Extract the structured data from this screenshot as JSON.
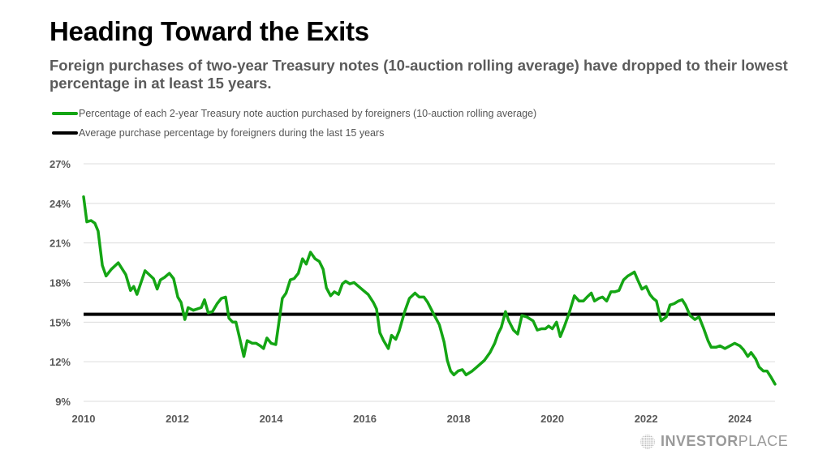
{
  "header": {
    "title": "Heading Toward the Exits",
    "subtitle": "Foreign purchases of two-year Treasury notes (10-auction rolling average) have dropped to their lowest percentage in at least 15 years."
  },
  "branding": {
    "logo_bold": "INVESTOR",
    "logo_light": "PLACE"
  },
  "chart_data": {
    "type": "line",
    "title": "Heading Toward the Exits",
    "xlabel": "",
    "ylabel": "",
    "xlim": [
      2010,
      2024.75
    ],
    "ylim": [
      9,
      27
    ],
    "grid": true,
    "legend_position": "top-left",
    "x_ticks": [
      "2010",
      "2012",
      "2014",
      "2016",
      "2018",
      "2020",
      "2022",
      "2024"
    ],
    "x_tick_values": [
      2010,
      2012,
      2014,
      2016,
      2018,
      2020,
      2022,
      2024
    ],
    "y_ticks": [
      "27%",
      "24%",
      "21%",
      "18%",
      "15%",
      "12%",
      "9%"
    ],
    "y_tick_values": [
      27,
      24,
      21,
      18,
      15,
      12,
      9
    ],
    "series": [
      {
        "name": "Percentage of each 2-year Treasury note auction purchased by foreigners (10-auction rolling average)",
        "color": "#14a514",
        "points": [
          [
            2010.0,
            24.5
          ],
          [
            2010.07,
            22.6
          ],
          [
            2010.16,
            22.7
          ],
          [
            2010.24,
            22.5
          ],
          [
            2010.31,
            21.9
          ],
          [
            2010.4,
            19.3
          ],
          [
            2010.48,
            18.5
          ],
          [
            2010.59,
            19.0
          ],
          [
            2010.74,
            19.5
          ],
          [
            2010.9,
            18.6
          ],
          [
            2011.0,
            17.4
          ],
          [
            2011.07,
            17.7
          ],
          [
            2011.14,
            17.1
          ],
          [
            2011.31,
            18.9
          ],
          [
            2011.49,
            18.3
          ],
          [
            2011.57,
            17.5
          ],
          [
            2011.64,
            18.2
          ],
          [
            2011.73,
            18.4
          ],
          [
            2011.83,
            18.7
          ],
          [
            2011.92,
            18.3
          ],
          [
            2012.01,
            16.9
          ],
          [
            2012.08,
            16.5
          ],
          [
            2012.16,
            15.2
          ],
          [
            2012.23,
            16.1
          ],
          [
            2012.34,
            15.9
          ],
          [
            2012.51,
            16.1
          ],
          [
            2012.58,
            16.7
          ],
          [
            2012.66,
            15.7
          ],
          [
            2012.75,
            15.8
          ],
          [
            2012.85,
            16.4
          ],
          [
            2012.94,
            16.8
          ],
          [
            2013.03,
            16.9
          ],
          [
            2013.1,
            15.3
          ],
          [
            2013.18,
            15.0
          ],
          [
            2013.25,
            15.0
          ],
          [
            2013.33,
            13.8
          ],
          [
            2013.42,
            12.4
          ],
          [
            2013.49,
            13.6
          ],
          [
            2013.6,
            13.4
          ],
          [
            2013.68,
            13.4
          ],
          [
            2013.77,
            13.2
          ],
          [
            2013.84,
            13.0
          ],
          [
            2013.91,
            13.8
          ],
          [
            2014.0,
            13.4
          ],
          [
            2014.1,
            13.3
          ],
          [
            2014.24,
            16.8
          ],
          [
            2014.32,
            17.2
          ],
          [
            2014.41,
            18.2
          ],
          [
            2014.49,
            18.3
          ],
          [
            2014.58,
            18.7
          ],
          [
            2014.67,
            19.8
          ],
          [
            2014.75,
            19.4
          ],
          [
            2014.84,
            20.3
          ],
          [
            2014.94,
            19.8
          ],
          [
            2015.03,
            19.6
          ],
          [
            2015.11,
            19.0
          ],
          [
            2015.18,
            17.6
          ],
          [
            2015.27,
            17.0
          ],
          [
            2015.35,
            17.3
          ],
          [
            2015.44,
            17.1
          ],
          [
            2015.52,
            17.9
          ],
          [
            2015.59,
            18.1
          ],
          [
            2015.68,
            17.9
          ],
          [
            2015.77,
            18.0
          ],
          [
            2015.87,
            17.7
          ],
          [
            2015.97,
            17.4
          ],
          [
            2016.07,
            17.1
          ],
          [
            2016.18,
            16.5
          ],
          [
            2016.25,
            16.0
          ],
          [
            2016.32,
            14.2
          ],
          [
            2016.4,
            13.6
          ],
          [
            2016.5,
            13.0
          ],
          [
            2016.57,
            14.0
          ],
          [
            2016.66,
            13.7
          ],
          [
            2016.73,
            14.3
          ],
          [
            2016.85,
            15.8
          ],
          [
            2016.95,
            16.8
          ],
          [
            2017.07,
            17.2
          ],
          [
            2017.16,
            16.9
          ],
          [
            2017.26,
            16.9
          ],
          [
            2017.34,
            16.5
          ],
          [
            2017.47,
            15.6
          ],
          [
            2017.59,
            14.8
          ],
          [
            2017.69,
            13.5
          ],
          [
            2017.76,
            12.1
          ],
          [
            2017.83,
            11.3
          ],
          [
            2017.9,
            11.0
          ],
          [
            2017.99,
            11.3
          ],
          [
            2018.08,
            11.4
          ],
          [
            2018.16,
            11.0
          ],
          [
            2018.29,
            11.3
          ],
          [
            2018.39,
            11.6
          ],
          [
            2018.55,
            12.1
          ],
          [
            2018.67,
            12.7
          ],
          [
            2018.77,
            13.4
          ],
          [
            2018.84,
            14.1
          ],
          [
            2018.91,
            14.6
          ],
          [
            2019.0,
            15.8
          ],
          [
            2019.07,
            15.1
          ],
          [
            2019.17,
            14.4
          ],
          [
            2019.26,
            14.1
          ],
          [
            2019.35,
            15.5
          ],
          [
            2019.45,
            15.4
          ],
          [
            2019.59,
            15.1
          ],
          [
            2019.68,
            14.4
          ],
          [
            2019.77,
            14.5
          ],
          [
            2019.85,
            14.5
          ],
          [
            2019.92,
            14.7
          ],
          [
            2020.0,
            14.5
          ],
          [
            2020.09,
            15.0
          ],
          [
            2020.17,
            13.9
          ],
          [
            2020.26,
            14.7
          ],
          [
            2020.36,
            15.7
          ],
          [
            2020.47,
            17.0
          ],
          [
            2020.57,
            16.6
          ],
          [
            2020.66,
            16.6
          ],
          [
            2020.74,
            16.9
          ],
          [
            2020.83,
            17.2
          ],
          [
            2020.9,
            16.6
          ],
          [
            2020.99,
            16.8
          ],
          [
            2021.07,
            16.9
          ],
          [
            2021.16,
            16.6
          ],
          [
            2021.25,
            17.3
          ],
          [
            2021.33,
            17.3
          ],
          [
            2021.42,
            17.4
          ],
          [
            2021.52,
            18.2
          ],
          [
            2021.61,
            18.5
          ],
          [
            2021.66,
            18.6
          ],
          [
            2021.75,
            18.8
          ],
          [
            2021.82,
            18.2
          ],
          [
            2021.91,
            17.5
          ],
          [
            2022.0,
            17.7
          ],
          [
            2022.08,
            17.1
          ],
          [
            2022.15,
            16.8
          ],
          [
            2022.22,
            16.6
          ],
          [
            2022.32,
            15.1
          ],
          [
            2022.43,
            15.4
          ],
          [
            2022.51,
            16.3
          ],
          [
            2022.6,
            16.4
          ],
          [
            2022.69,
            16.6
          ],
          [
            2022.77,
            16.7
          ],
          [
            2022.84,
            16.3
          ],
          [
            2022.94,
            15.5
          ],
          [
            2023.04,
            15.2
          ],
          [
            2023.13,
            15.4
          ],
          [
            2023.23,
            14.5
          ],
          [
            2023.32,
            13.6
          ],
          [
            2023.39,
            13.1
          ],
          [
            2023.49,
            13.1
          ],
          [
            2023.58,
            13.2
          ],
          [
            2023.68,
            13.0
          ],
          [
            2023.79,
            13.2
          ],
          [
            2023.89,
            13.4
          ],
          [
            2024.0,
            13.2
          ],
          [
            2024.08,
            12.9
          ],
          [
            2024.17,
            12.4
          ],
          [
            2024.24,
            12.7
          ],
          [
            2024.34,
            12.2
          ],
          [
            2024.41,
            11.6
          ],
          [
            2024.5,
            11.3
          ],
          [
            2024.58,
            11.3
          ],
          [
            2024.67,
            10.8
          ],
          [
            2024.75,
            10.3
          ]
        ]
      },
      {
        "name": "Average purchase percentage by foreigners during the last 15 years",
        "color": "#000000",
        "points": [
          [
            2010.0,
            15.6
          ],
          [
            2024.75,
            15.6
          ]
        ]
      }
    ]
  }
}
